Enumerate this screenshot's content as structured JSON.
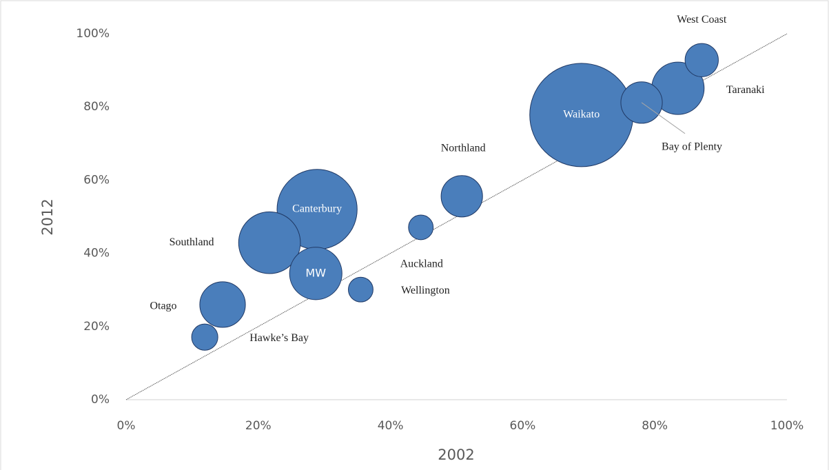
{
  "chart_data": {
    "type": "bubble",
    "xlabel": "2002",
    "ylabel": "2012",
    "labels": [
      "West Coast",
      "Taranaki",
      "Bay of Plenty",
      "Waikato",
      "Northland",
      "Auckland",
      "Canterbury",
      "Southland",
      "MW",
      "Wellington",
      "Otago",
      "Hawke’s Bay"
    ],
    "x": [
      87.1,
      83.5,
      78.0,
      68.9,
      50.8,
      44.6,
      28.9,
      21.7,
      28.7,
      35.5,
      14.6,
      11.9
    ],
    "y": [
      92.8,
      85.1,
      81.2,
      77.8,
      55.6,
      47.1,
      52.0,
      42.9,
      34.5,
      30.1,
      26.0,
      17.1
    ],
    "sizes": [
      5.8,
      14.4,
      9.0,
      56.0,
      9.0,
      3.2,
      33.6,
      20.0,
      14.4,
      3.2,
      10.9,
      3.6
    ],
    "color": "#4a7ebb",
    "xlim": [
      0,
      100
    ],
    "ylim": [
      0,
      100
    ],
    "xticks": [
      {
        "value": 0,
        "label": "0%"
      },
      {
        "value": 20,
        "label": "20%"
      },
      {
        "value": 40,
        "label": "40%"
      },
      {
        "value": 60,
        "label": "60%"
      },
      {
        "value": 80,
        "label": "80%"
      },
      {
        "value": 100,
        "label": "100%"
      }
    ],
    "yticks": [
      {
        "value": 0,
        "label": "0%"
      },
      {
        "value": 20,
        "label": "20%"
      },
      {
        "value": 40,
        "label": "40%"
      },
      {
        "value": 60,
        "label": "60%"
      },
      {
        "value": 80,
        "label": "80%"
      },
      {
        "value": 100,
        "label": "100%"
      }
    ],
    "grid": false
  }
}
